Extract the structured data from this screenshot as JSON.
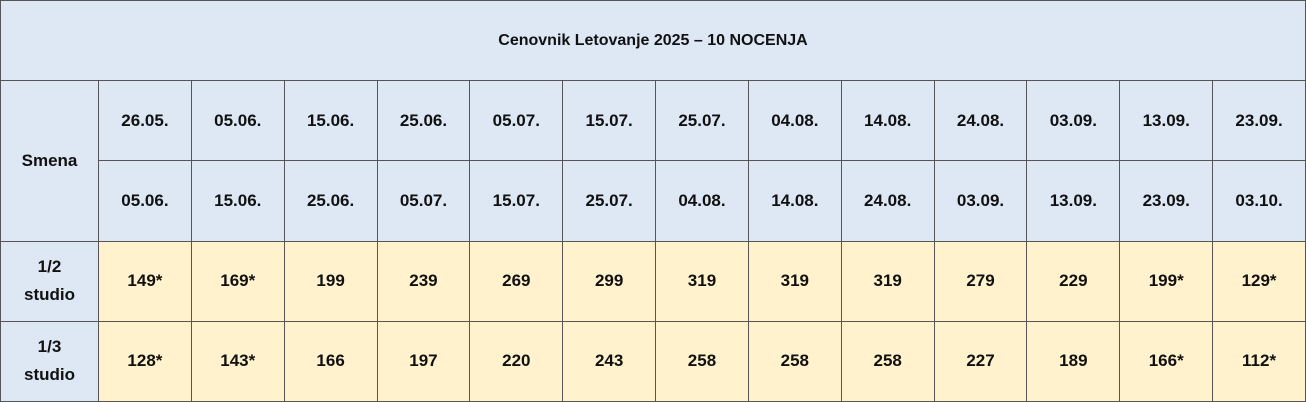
{
  "title": "Cenovnik Letovanje 2025 – 10 NOCENJA",
  "header": {
    "label": "Smena",
    "from": [
      "26.05.",
      "05.06.",
      "15.06.",
      "25.06.",
      "05.07.",
      "15.07.",
      "25.07.",
      "04.08.",
      "14.08.",
      "24.08.",
      "03.09.",
      "13.09.",
      "23.09."
    ],
    "to": [
      "05.06.",
      "15.06.",
      "25.06.",
      "05.07.",
      "15.07.",
      "25.07.",
      "04.08.",
      "14.08.",
      "24.08.",
      "03.09.",
      "13.09.",
      "23.09.",
      "03.10."
    ]
  },
  "rows": [
    {
      "label": [
        "1/2",
        "studio"
      ],
      "prices": [
        "149*",
        "169*",
        "199",
        "239",
        "269",
        "299",
        "319",
        "319",
        "319",
        "279",
        "229",
        "199*",
        "129*"
      ]
    },
    {
      "label": [
        "1/3",
        "studio"
      ],
      "prices": [
        "128*",
        "143*",
        "166",
        "197",
        "220",
        "243",
        "258",
        "258",
        "258",
        "227",
        "189",
        "166*",
        "112*"
      ]
    }
  ]
}
